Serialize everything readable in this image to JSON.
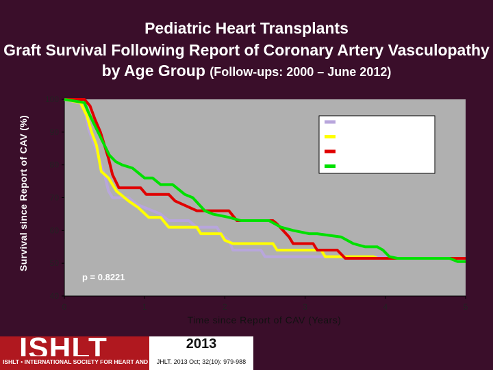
{
  "title": "Pediatric Heart Transplants",
  "subtitle_main": "Graft Survival Following Report of Coronary Artery Vasculopathy by Age Group",
  "subtitle_small": "(Follow-ups: 2000 – June 2012)",
  "logo_text": "ISHLT",
  "logo_subtitle": "ISHLT • INTERNATIONAL SOCIETY FOR HEART AND LUNG TRANSPLANTATION",
  "year": "2013",
  "citation": "JHLT. 2013 Oct; 32(10): 979-988",
  "colors": {
    "plot_bg": "#b0b0b0",
    "legend_bg": "#ffffff"
  },
  "chart_data": {
    "type": "line",
    "xlabel": "Time since Report of CAV (Years)",
    "ylabel": "Survival since Report of CAV (%)",
    "xlim": [
      0,
      5
    ],
    "ylim": [
      40,
      100
    ],
    "xticks": [
      0,
      1,
      2,
      3,
      4,
      5
    ],
    "yticks": [
      40,
      50,
      60,
      70,
      80,
      90,
      100
    ],
    "grid": false,
    "legend_position": "top-right",
    "annotation": "p = 0.8221",
    "series": [
      {
        "color": "#b8a6dc",
        "points": [
          [
            0,
            100
          ],
          [
            0.2,
            99
          ],
          [
            0.26,
            96
          ],
          [
            0.3,
            91
          ],
          [
            0.36,
            87
          ],
          [
            0.42,
            83
          ],
          [
            0.46,
            80
          ],
          [
            0.5,
            77
          ],
          [
            0.55,
            72
          ],
          [
            0.6,
            70
          ],
          [
            0.8,
            70
          ],
          [
            0.9,
            68
          ],
          [
            1.1,
            66
          ],
          [
            1.2,
            65
          ],
          [
            1.3,
            63
          ],
          [
            1.55,
            63
          ],
          [
            1.6,
            62
          ],
          [
            1.65,
            61
          ],
          [
            1.9,
            61
          ],
          [
            1.95,
            59
          ],
          [
            2.05,
            57
          ],
          [
            2.1,
            54
          ],
          [
            2.45,
            54
          ],
          [
            2.5,
            52
          ],
          [
            4.05,
            52
          ],
          [
            4.1,
            51.5
          ],
          [
            5,
            51.5
          ]
        ]
      },
      {
        "color": "#ffff00",
        "points": [
          [
            0,
            100
          ],
          [
            0.2,
            99
          ],
          [
            0.28,
            95
          ],
          [
            0.34,
            90
          ],
          [
            0.4,
            86
          ],
          [
            0.46,
            78
          ],
          [
            0.55,
            76
          ],
          [
            0.65,
            72
          ],
          [
            0.8,
            69
          ],
          [
            0.92,
            67
          ],
          [
            1.05,
            64
          ],
          [
            1.2,
            64
          ],
          [
            1.3,
            61
          ],
          [
            1.65,
            61
          ],
          [
            1.7,
            59
          ],
          [
            1.95,
            59
          ],
          [
            2.0,
            57
          ],
          [
            2.1,
            56
          ],
          [
            2.6,
            56
          ],
          [
            2.65,
            54
          ],
          [
            3.2,
            54
          ],
          [
            3.25,
            52
          ],
          [
            3.7,
            52
          ],
          [
            3.85,
            52
          ],
          [
            3.9,
            51.5
          ],
          [
            5,
            51.5
          ]
        ]
      },
      {
        "color": "#e00000",
        "points": [
          [
            0,
            100
          ],
          [
            0.25,
            100
          ],
          [
            0.32,
            98
          ],
          [
            0.38,
            94
          ],
          [
            0.45,
            90
          ],
          [
            0.5,
            86
          ],
          [
            0.55,
            82
          ],
          [
            0.6,
            77
          ],
          [
            0.68,
            73
          ],
          [
            0.95,
            73
          ],
          [
            1.02,
            71
          ],
          [
            1.3,
            71
          ],
          [
            1.38,
            69
          ],
          [
            1.65,
            66
          ],
          [
            2.05,
            66
          ],
          [
            2.15,
            63
          ],
          [
            2.6,
            63
          ],
          [
            2.65,
            62
          ],
          [
            2.8,
            58
          ],
          [
            2.85,
            56
          ],
          [
            3.1,
            56
          ],
          [
            3.15,
            54
          ],
          [
            3.4,
            54
          ],
          [
            3.5,
            51.5
          ],
          [
            5,
            51.5
          ]
        ]
      },
      {
        "color": "#00e000",
        "points": [
          [
            0,
            100
          ],
          [
            0.25,
            99
          ],
          [
            0.3,
            96
          ],
          [
            0.36,
            93
          ],
          [
            0.42,
            90
          ],
          [
            0.5,
            86
          ],
          [
            0.56,
            83
          ],
          [
            0.64,
            81
          ],
          [
            0.72,
            80
          ],
          [
            0.85,
            79
          ],
          [
            1.0,
            76
          ],
          [
            1.1,
            76
          ],
          [
            1.2,
            74
          ],
          [
            1.35,
            74
          ],
          [
            1.5,
            71
          ],
          [
            1.6,
            70
          ],
          [
            1.75,
            66
          ],
          [
            1.85,
            65
          ],
          [
            2.05,
            64
          ],
          [
            2.2,
            63
          ],
          [
            2.55,
            63
          ],
          [
            2.7,
            61
          ],
          [
            2.85,
            60
          ],
          [
            3.05,
            59
          ],
          [
            3.15,
            59
          ],
          [
            3.45,
            58
          ],
          [
            3.6,
            56
          ],
          [
            3.75,
            55
          ],
          [
            3.9,
            55
          ],
          [
            3.97,
            54
          ],
          [
            4.05,
            52
          ],
          [
            4.15,
            51.5
          ],
          [
            4.8,
            51.5
          ],
          [
            4.9,
            50.5
          ],
          [
            5,
            50.5
          ]
        ]
      }
    ]
  }
}
